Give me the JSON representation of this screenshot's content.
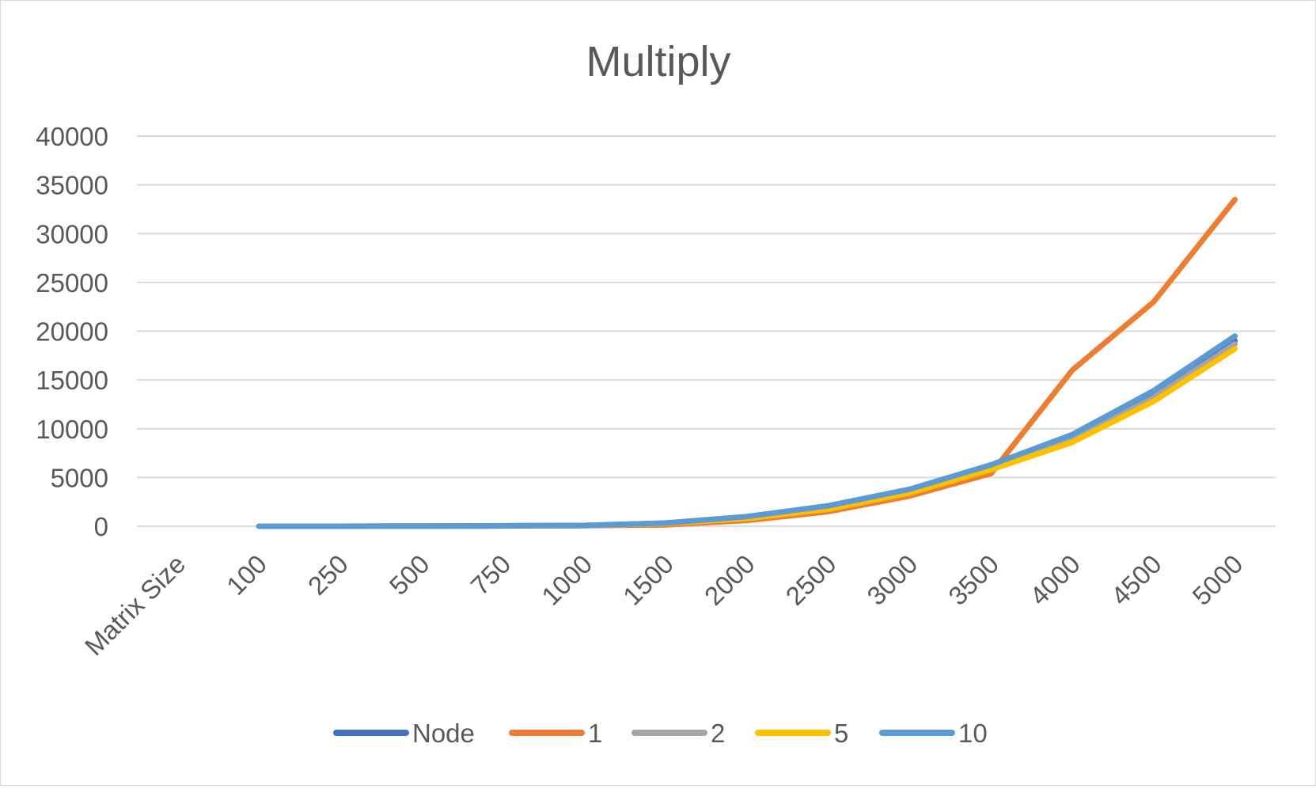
{
  "chart_data": {
    "type": "line",
    "title": "Multiply",
    "xlabel": "",
    "ylabel": "",
    "categories": [
      "Matrix Size",
      "100",
      "250",
      "500",
      "750",
      "1000",
      "1500",
      "2000",
      "2500",
      "3000",
      "3500",
      "4000",
      "4500",
      "5000"
    ],
    "ylim": [
      0,
      40000
    ],
    "yticks": [
      0,
      5000,
      10000,
      15000,
      20000,
      25000,
      30000,
      35000,
      40000
    ],
    "grid": true,
    "legend_position": "bottom",
    "series": [
      {
        "name": "Node",
        "color": "#4472c4",
        "values": [
          null,
          0,
          2,
          10,
          40,
          80,
          300,
          900,
          1900,
          3600,
          6000,
          9100,
          13500,
          19000
        ]
      },
      {
        "name": "1",
        "color": "#ed7d31",
        "values": [
          null,
          0,
          2,
          10,
          30,
          60,
          150,
          600,
          1500,
          3100,
          5400,
          16000,
          23000,
          33500
        ]
      },
      {
        "name": "2",
        "color": "#a5a5a5",
        "values": [
          null,
          0,
          2,
          10,
          40,
          80,
          300,
          850,
          1800,
          3500,
          5900,
          8800,
          13200,
          18700
        ]
      },
      {
        "name": "5",
        "color": "#ffc000",
        "values": [
          null,
          0,
          2,
          10,
          40,
          80,
          280,
          800,
          1750,
          3400,
          5800,
          8600,
          12800,
          18200
        ]
      },
      {
        "name": "10",
        "color": "#5b9bd5",
        "values": [
          null,
          0,
          2,
          10,
          40,
          80,
          330,
          1000,
          2100,
          3800,
          6300,
          9400,
          13900,
          19500
        ]
      }
    ]
  }
}
